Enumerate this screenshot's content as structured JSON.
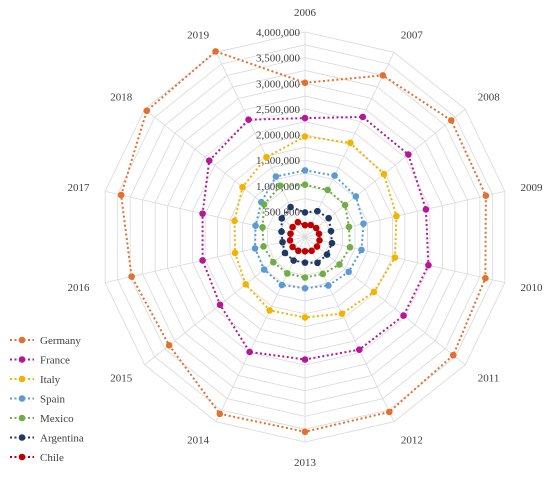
{
  "chart_data": {
    "type": "radar",
    "categories": [
      "2006",
      "2007",
      "2008",
      "2009",
      "2010",
      "2011",
      "2012",
      "2013",
      "2014",
      "2015",
      "2016",
      "2017",
      "2018",
      "2019"
    ],
    "radial_ticks": [
      "500,000",
      "1,000,000",
      "1,500,000",
      "2,000,000",
      "2,500,000",
      "3,000,000",
      "3,500,000",
      "4,000,000"
    ],
    "rlim": [
      0,
      4000000
    ],
    "grid_rings": 16,
    "grid": true,
    "legend_position": "left-bottom",
    "series": [
      {
        "name": "Germany",
        "color": "#E2702F",
        "values": [
          3010000,
          3500000,
          3650000,
          3620000,
          3610000,
          3700000,
          3790000,
          3800000,
          3830000,
          3390000,
          3470000,
          3680000,
          3950000,
          4020000
        ]
      },
      {
        "name": "France",
        "color": "#B5169A",
        "values": [
          2320000,
          2600000,
          2580000,
          2420000,
          2470000,
          2460000,
          2440000,
          2390000,
          2490000,
          2120000,
          2050000,
          2050000,
          2390000,
          2540000
        ]
      },
      {
        "name": "Italy",
        "color": "#F2B400",
        "values": [
          1960000,
          2040000,
          1970000,
          1830000,
          1800000,
          1720000,
          1660000,
          1570000,
          1590000,
          1480000,
          1400000,
          1410000,
          1560000,
          1730000
        ]
      },
      {
        "name": "Spain",
        "color": "#5B9BD5",
        "values": [
          1300000,
          1330000,
          1270000,
          1170000,
          1130000,
          1090000,
          1050000,
          1000000,
          1040000,
          1020000,
          1000000,
          990000,
          1090000,
          1310000
        ]
      },
      {
        "name": "Mexico",
        "color": "#70AD47",
        "values": [
          1020000,
          1020000,
          1000000,
          880000,
          900000,
          860000,
          800000,
          790000,
          790000,
          790000,
          830000,
          850000,
          1020000,
          1110000
        ]
      },
      {
        "name": "Argentina",
        "color": "#203864",
        "values": [
          480000,
          560000,
          590000,
          520000,
          540000,
          550000,
          560000,
          500000,
          510000,
          500000,
          450000,
          470000,
          580000,
          650000
        ]
      },
      {
        "name": "Chile",
        "color": "#C00000",
        "values": [
          230000,
          260000,
          280000,
          280000,
          290000,
          300000,
          300000,
          280000,
          300000,
          310000,
          300000,
          290000,
          310000,
          320000
        ]
      }
    ]
  }
}
